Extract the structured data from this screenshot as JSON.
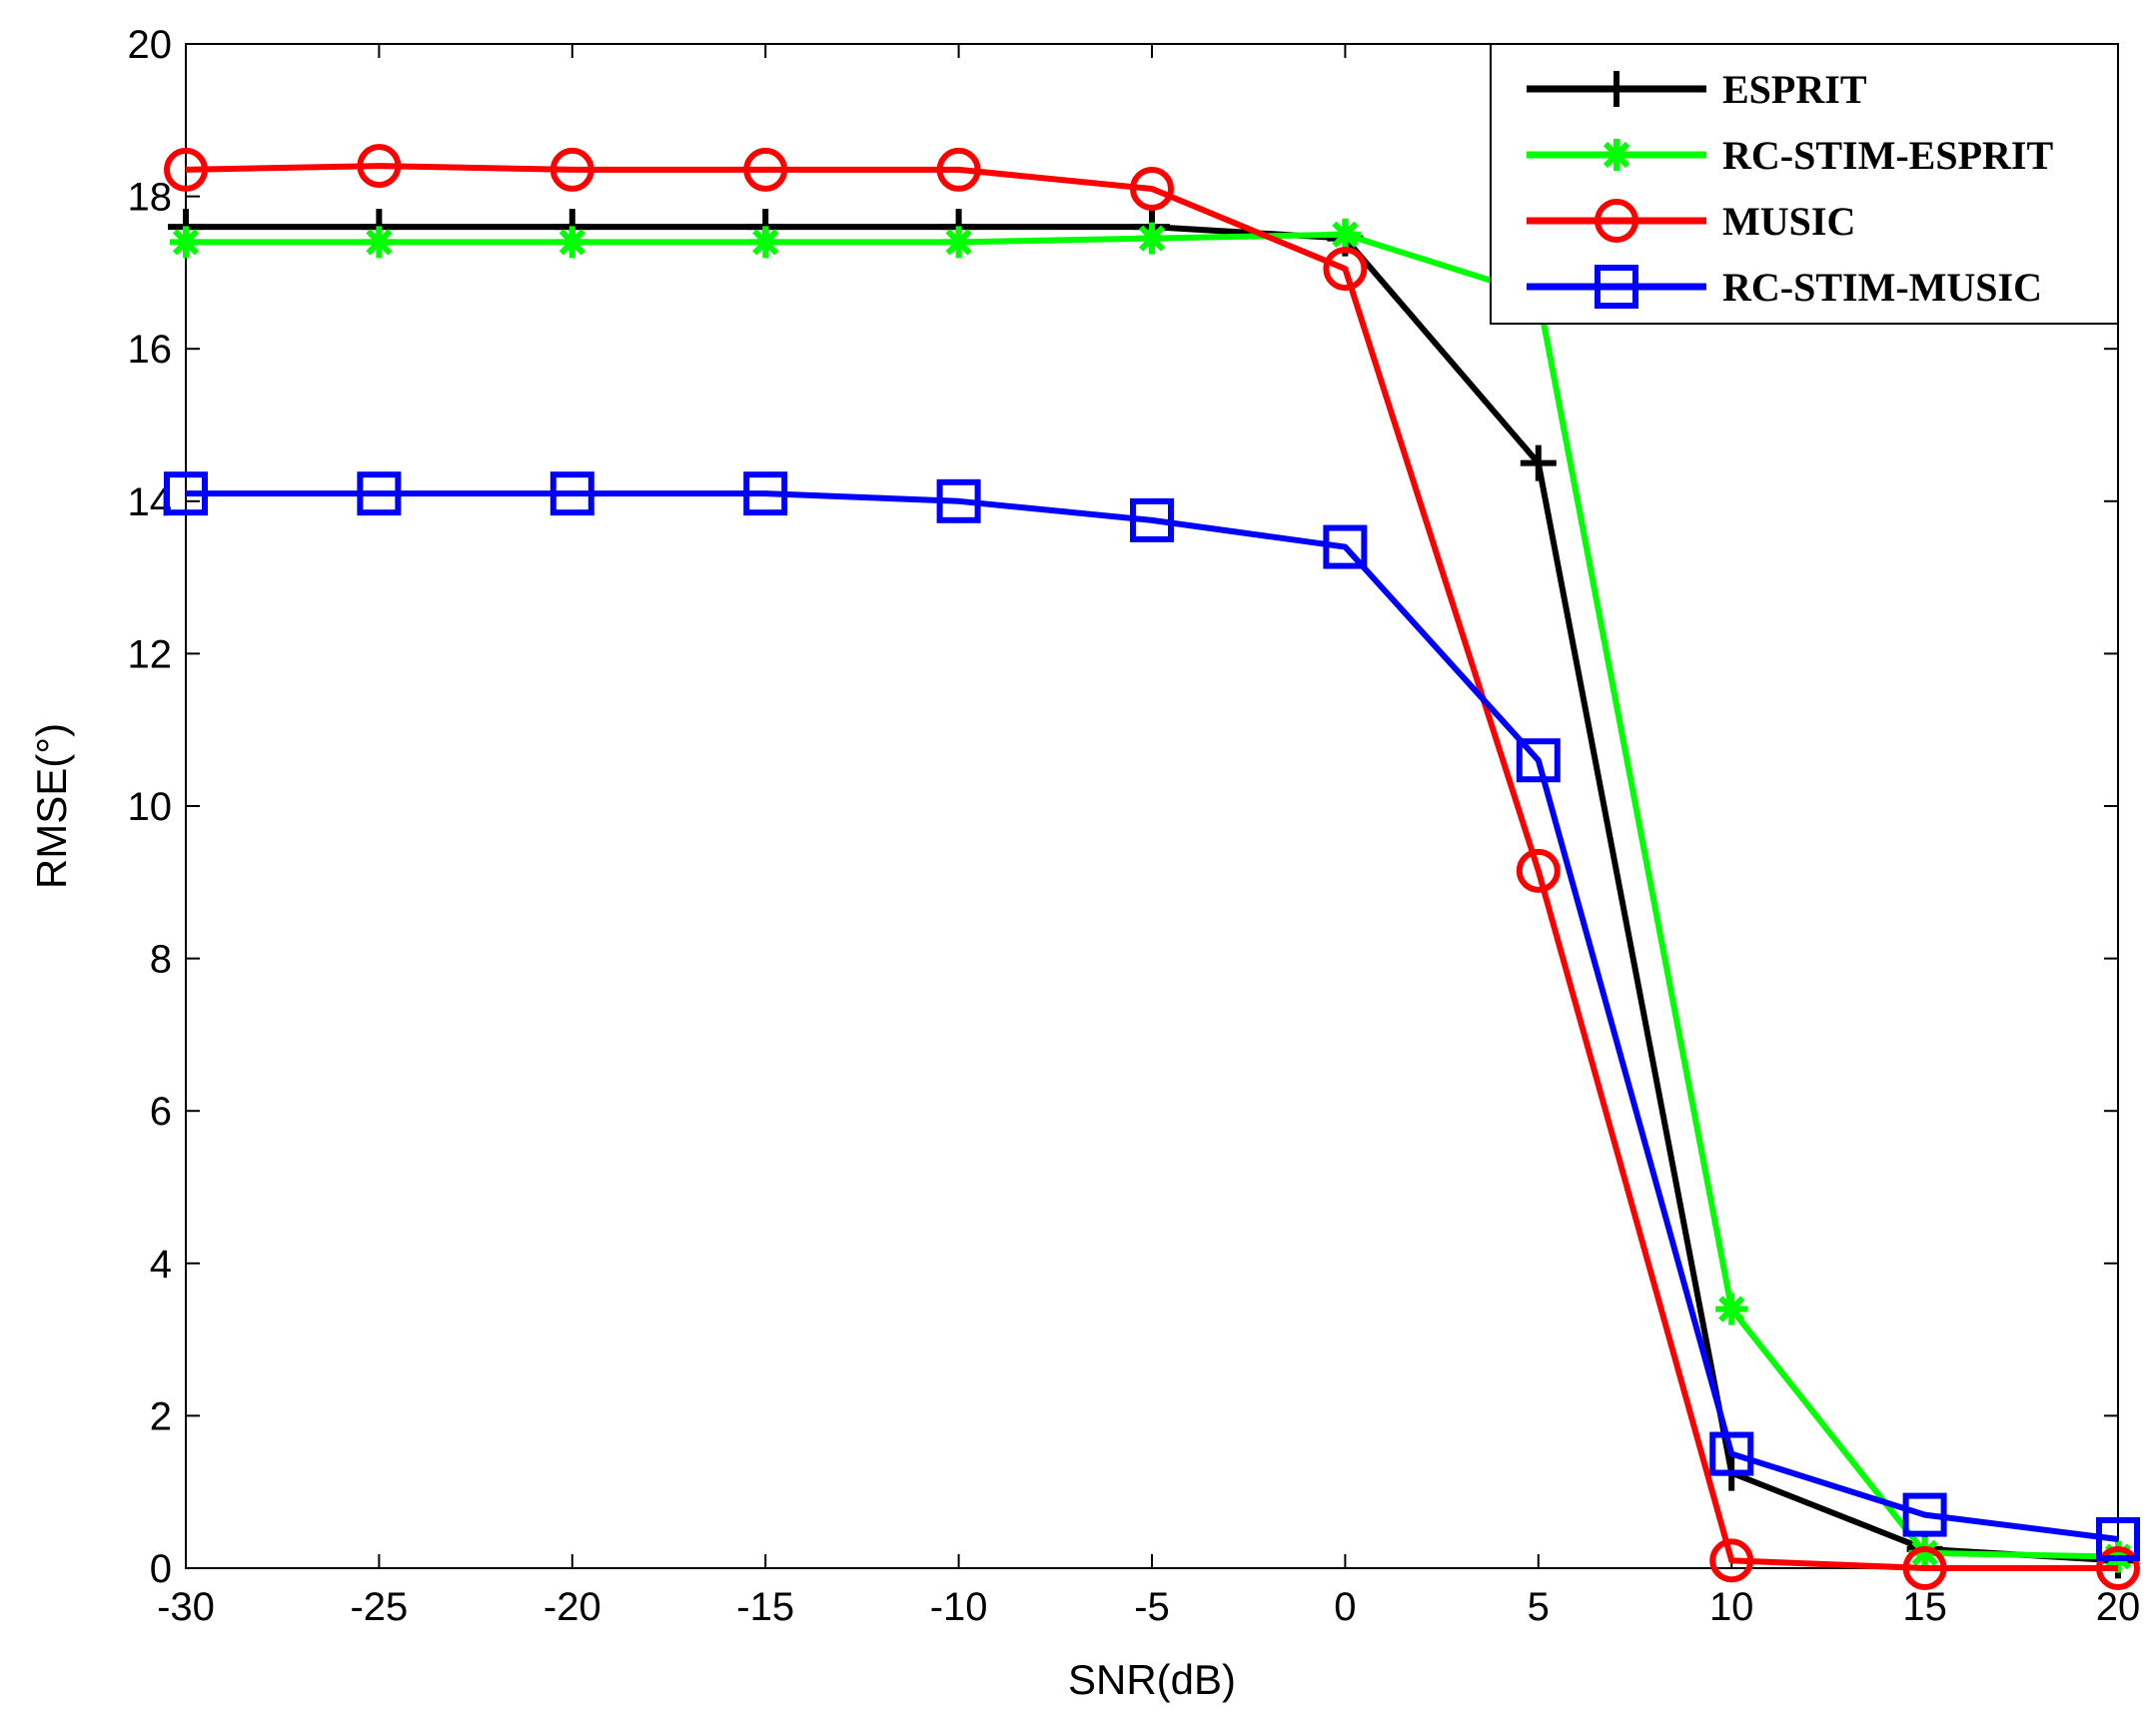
{
  "chart_data": {
    "type": "line",
    "title": "",
    "xlabel": "SNR(dB)",
    "ylabel": "RMSE(°)",
    "xlim": [
      -30,
      20
    ],
    "ylim": [
      0,
      20
    ],
    "xticks": [
      -30,
      -25,
      -20,
      -15,
      -10,
      -5,
      0,
      5,
      10,
      15,
      20
    ],
    "yticks": [
      0,
      2,
      4,
      6,
      8,
      10,
      12,
      14,
      16,
      18,
      20
    ],
    "x": [
      -30,
      -25,
      -20,
      -15,
      -10,
      -5,
      0,
      5,
      10,
      15,
      20
    ],
    "grid": false,
    "legend_position": "top-right",
    "series": [
      {
        "name": "ESPRIT",
        "color": "#000000",
        "marker": "plus",
        "values": [
          17.6,
          17.6,
          17.6,
          17.6,
          17.6,
          17.6,
          17.45,
          14.5,
          1.25,
          0.25,
          0.1
        ]
      },
      {
        "name": "RC-STIM-ESPRIT",
        "color": "#00ff00",
        "marker": "star",
        "values": [
          17.4,
          17.4,
          17.4,
          17.4,
          17.4,
          17.45,
          17.5,
          16.7,
          3.4,
          0.2,
          0.15
        ]
      },
      {
        "name": "MUSIC",
        "color": "#ff0000",
        "marker": "circle",
        "values": [
          18.35,
          18.4,
          18.35,
          18.35,
          18.35,
          18.1,
          17.05,
          9.15,
          0.1,
          0.0,
          0.0
        ]
      },
      {
        "name": "RC-STIM-MUSIC",
        "color": "#0000ff",
        "marker": "square",
        "values": [
          14.1,
          14.1,
          14.1,
          14.1,
          14.0,
          13.75,
          13.4,
          10.6,
          1.5,
          0.7,
          0.38
        ]
      }
    ]
  }
}
